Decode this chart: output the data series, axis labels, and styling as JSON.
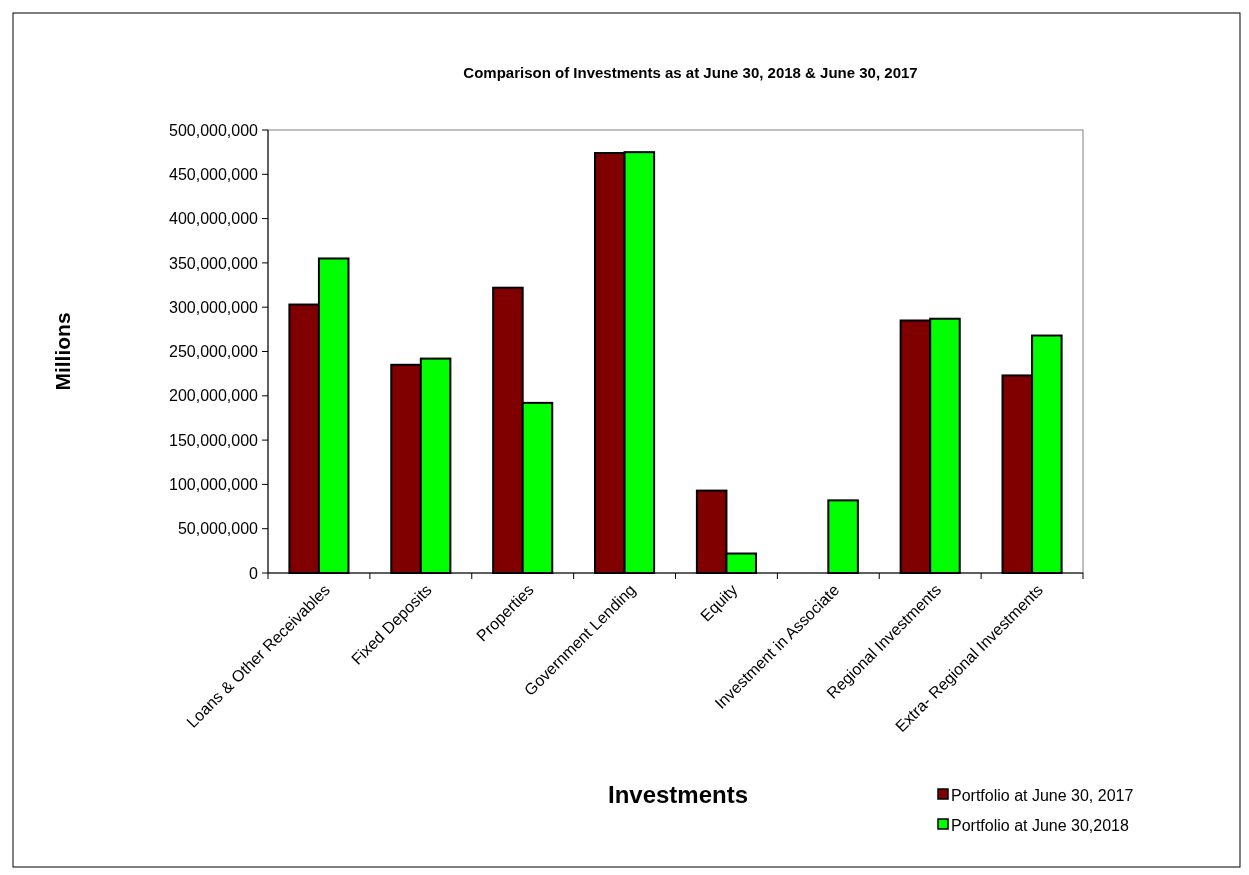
{
  "chart_data": {
    "type": "bar",
    "title": "Comparison of Investments as at June 30, 2018 & June 30, 2017",
    "xlabel": "Investments",
    "ylabel": "Millions",
    "categories": [
      "Loans & Other Receivables",
      "Fixed Deposits",
      "Properties",
      "Government Lending",
      "Equity",
      "Investment in Associate",
      "Regional Investments",
      "Extra- Regional Investments"
    ],
    "series": [
      {
        "name": "Portfolio at June 30, 2017",
        "color": "#800000",
        "values": [
          303000000,
          235000000,
          322000000,
          474000000,
          93000000,
          null,
          285000000,
          223000000
        ]
      },
      {
        "name": "Portfolio at June 30,2018",
        "color": "#00ff00",
        "values": [
          355000000,
          242000000,
          192000000,
          475000000,
          22000000,
          82000000,
          287000000,
          268000000
        ]
      }
    ],
    "ylim": [
      0,
      500000000
    ],
    "yticks": [
      0,
      {
        "value": 50000000,
        "label": "50,000,000"
      },
      {
        "value": 100000000,
        "label": "100,000,000"
      },
      {
        "value": 150000000,
        "label": "150,000,000"
      },
      {
        "value": 200000000,
        "label": "200,000,000"
      },
      {
        "value": 250000000,
        "label": "250,000,000"
      },
      {
        "value": 300000000,
        "label": "300,000,000"
      },
      {
        "value": 350000000,
        "label": "350,000,000"
      },
      {
        "value": 400000000,
        "label": "400,000,000"
      },
      {
        "value": 450000000,
        "label": "450,000,000"
      },
      {
        "value": 500000000,
        "label": "500,000,000"
      }
    ],
    "grid": false,
    "legend": "bottom right"
  }
}
